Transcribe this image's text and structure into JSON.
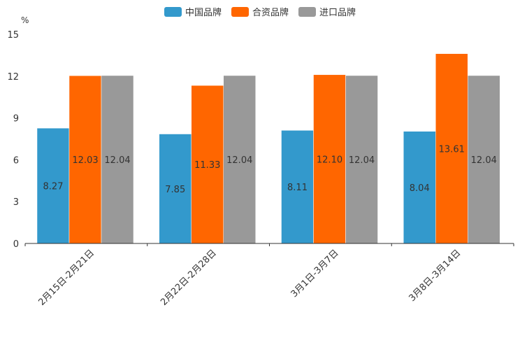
{
  "chart_data": {
    "type": "bar",
    "title": "",
    "unit": "%",
    "xlabel": "",
    "ylabel": "",
    "ylim": [
      0,
      15
    ],
    "yticks": [
      "0",
      "3",
      "6",
      "9",
      "12",
      "15"
    ],
    "legend_position": "top-center",
    "categories": [
      "2月15日-2月21日",
      "2月22日-2月28日",
      "3月1日-3月7日",
      "3月8日-3月14日"
    ],
    "series": [
      {
        "name": "中国品牌",
        "color": "#3399cc",
        "values": [
          8.27,
          7.85,
          8.11,
          8.04
        ]
      },
      {
        "name": "合资品牌",
        "color": "#ff6600",
        "values": [
          12.03,
          11.33,
          12.1,
          13.61
        ]
      },
      {
        "name": "进口品牌",
        "color": "#999999",
        "values": [
          12.04,
          12.04,
          12.04,
          12.04
        ]
      }
    ]
  }
}
